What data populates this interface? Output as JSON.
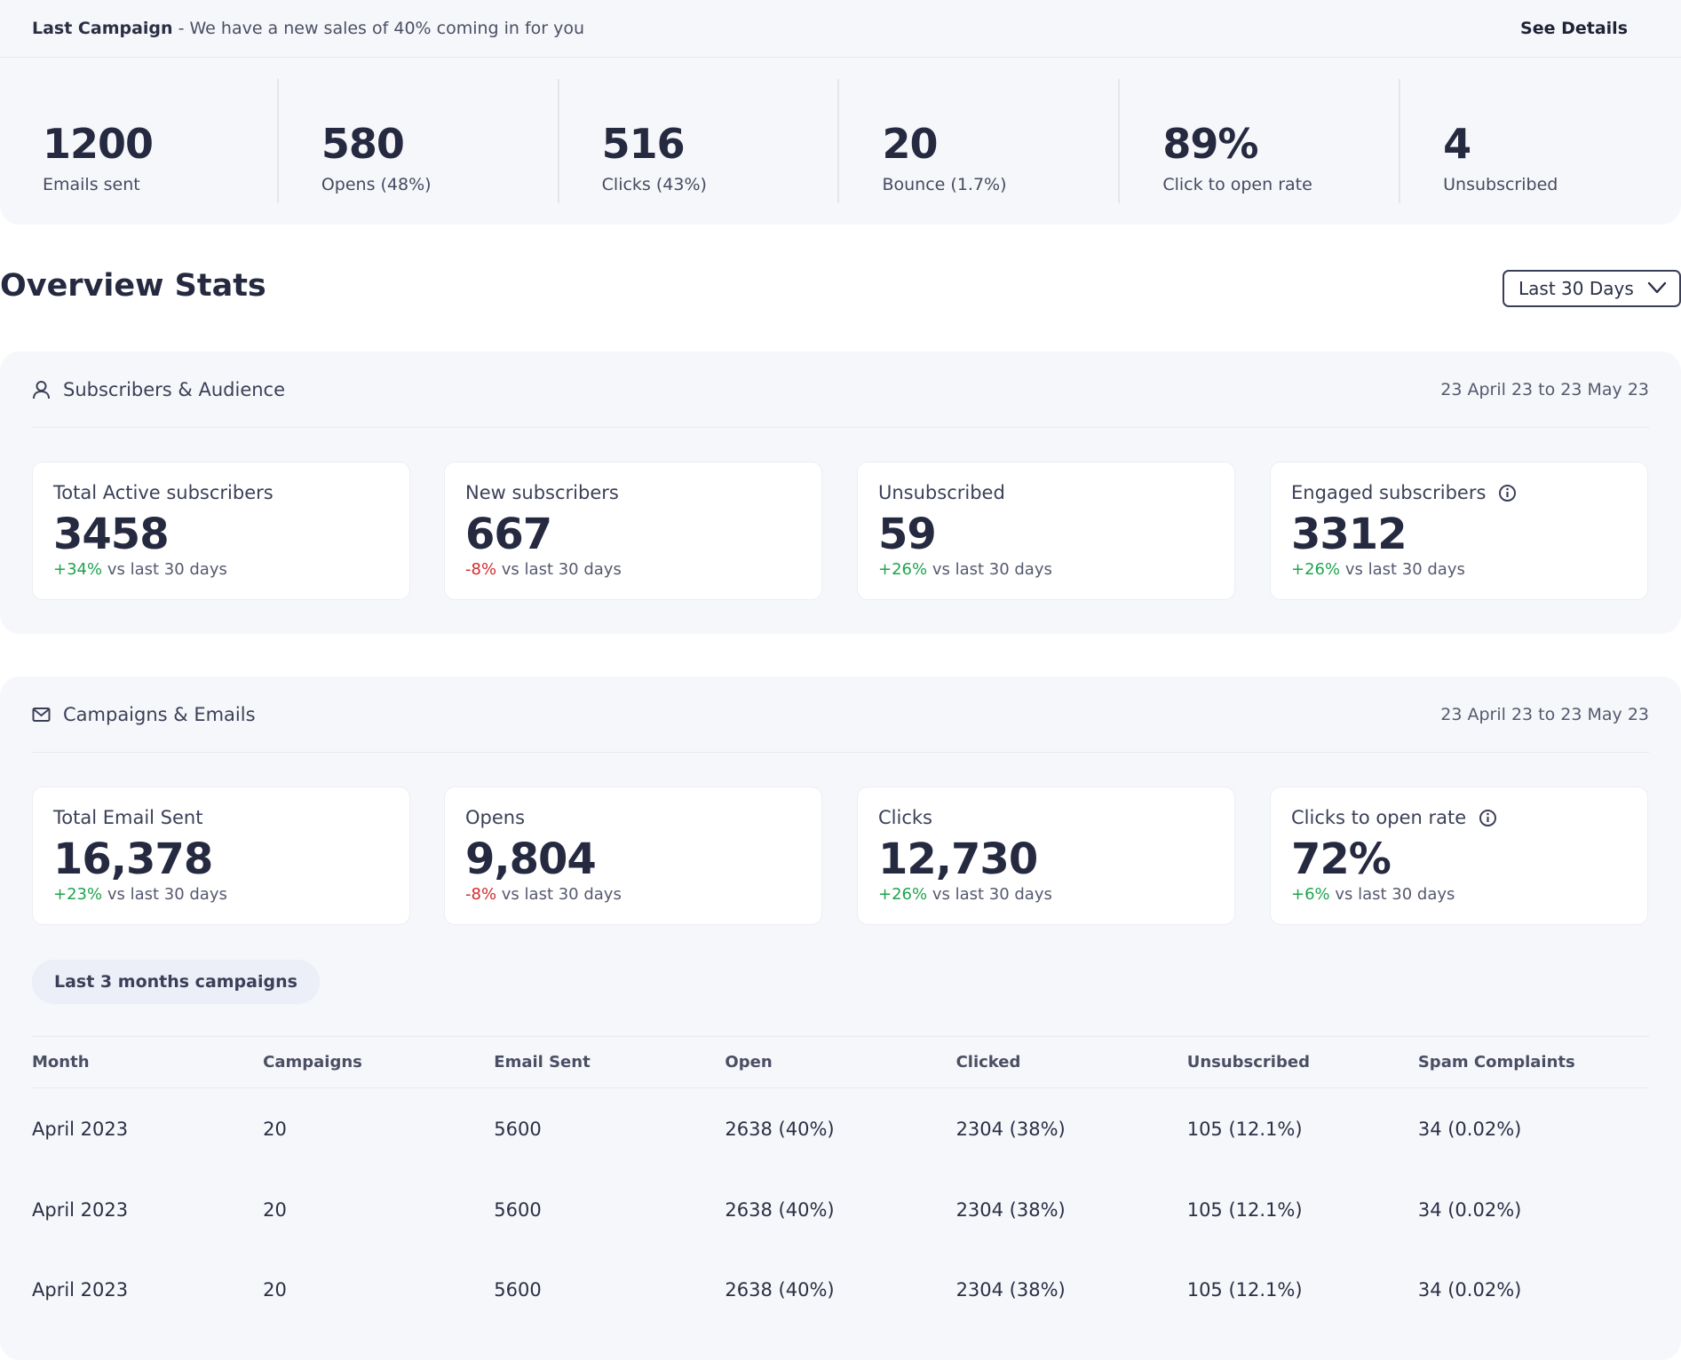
{
  "banner": {
    "campaign_label": "Last Campaign",
    "message": " - We have a new sales of 40% coming in for you",
    "see_details": "See Details",
    "stats": [
      {
        "value": "1200",
        "label": "Emails sent"
      },
      {
        "value": "580",
        "label": "Opens (48%)"
      },
      {
        "value": "516",
        "label": "Clicks (43%)"
      },
      {
        "value": "20",
        "label": "Bounce (1.7%)"
      },
      {
        "value": "89%",
        "label": "Click to open rate"
      },
      {
        "value": "4",
        "label": "Unsubscribed"
      }
    ]
  },
  "overview": {
    "title": "Overview Stats",
    "range": "Last 30 Days"
  },
  "subscribers": {
    "title": "Subscribers & Audience",
    "date_range": "23 April 23 to 23 May 23",
    "cards": [
      {
        "title": "Total Active subscribers",
        "value": "3458",
        "change": "+34%",
        "compare": " vs last 30 days"
      },
      {
        "title": "New subscribers",
        "value": "667",
        "change": "-8%",
        "compare": " vs last 30 days"
      },
      {
        "title": "Unsubscribed",
        "value": "59",
        "change": "+26%",
        "compare": " vs last 30 days"
      },
      {
        "title": "Engaged subscribers",
        "value": "3312",
        "change": "+26%",
        "compare": " vs last 30 days"
      }
    ]
  },
  "campaigns": {
    "title": "Campaigns & Emails",
    "date_range": "23 April 23 to 23 May 23",
    "cards": [
      {
        "title": "Total Email Sent",
        "value": "16,378",
        "change": "+23%",
        "compare": " vs last 30 days"
      },
      {
        "title": "Opens",
        "value": "9,804",
        "change": "-8%",
        "compare": " vs last 30 days"
      },
      {
        "title": "Clicks",
        "value": "12,730",
        "change": "+26%",
        "compare": " vs last 30 days"
      },
      {
        "title": "Clicks to open rate",
        "value": "72%",
        "change": "+6%",
        "compare": " vs last 30 days"
      }
    ],
    "filter_pill": "Last 3 months campaigns",
    "table": {
      "headers": [
        "Month",
        "Campaigns",
        "Email Sent",
        "Open",
        "Clicked",
        "Unsubscribed",
        "Spam Complaints"
      ],
      "rows": [
        [
          "April 2023",
          "20",
          "5600",
          "2638 (40%)",
          "2304 (38%)",
          "105 (12.1%)",
          "34 (0.02%)"
        ],
        [
          "April 2023",
          "20",
          "5600",
          "2638 (40%)",
          "2304 (38%)",
          "105 (12.1%)",
          "34 (0.02%)"
        ],
        [
          "April 2023",
          "20",
          "5600",
          "2638 (40%)",
          "2304 (38%)",
          "105 (12.1%)",
          "34 (0.02%)"
        ]
      ]
    }
  },
  "icons": {
    "user": "user-icon",
    "mail": "mail-icon",
    "info": "info-icon",
    "chevron": "chevron-down-icon"
  },
  "colors": {
    "positive": "#1ea44d",
    "negative": "#d42b2b",
    "panel_bg": "#f6f7fa"
  }
}
